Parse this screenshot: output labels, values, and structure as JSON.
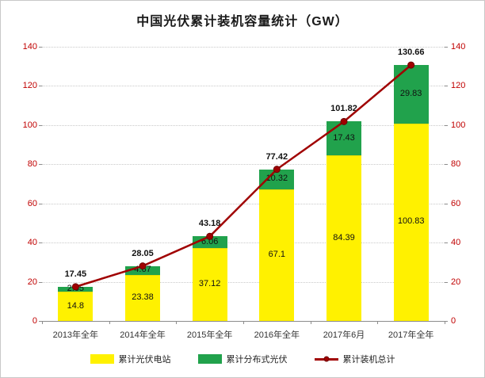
{
  "title": "中国光伏累计装机容量统计（GW）",
  "chart_data": {
    "type": "bar",
    "subtype": "stacked-bars-with-line",
    "title": "中国光伏累计装机容量统计（GW）",
    "categories": [
      "2013年全年",
      "2014年全年",
      "2015年全年",
      "2016年全年",
      "2017年6月",
      "2017年全年"
    ],
    "series": [
      {
        "name": "累计光伏电站",
        "type": "bar",
        "color": "#fff100",
        "values": [
          14.8,
          23.38,
          37.12,
          67.1,
          84.39,
          100.83
        ]
      },
      {
        "name": "累计分布式光伏",
        "type": "bar",
        "color": "#21a24c",
        "values": [
          2.65,
          4.67,
          6.06,
          10.32,
          17.43,
          29.83
        ]
      },
      {
        "name": "累计装机总计",
        "type": "line",
        "color": "#a00000",
        "values": [
          17.45,
          28.05,
          43.18,
          77.42,
          101.82,
          130.66
        ]
      }
    ],
    "ylim": [
      0,
      140
    ],
    "yticks": [
      0,
      20,
      40,
      60,
      80,
      100,
      120,
      140
    ],
    "grid": true,
    "dual_axis": true,
    "legend_position": "bottom",
    "axis_tick_color": "#c00000",
    "category_label_color": "#333333"
  }
}
